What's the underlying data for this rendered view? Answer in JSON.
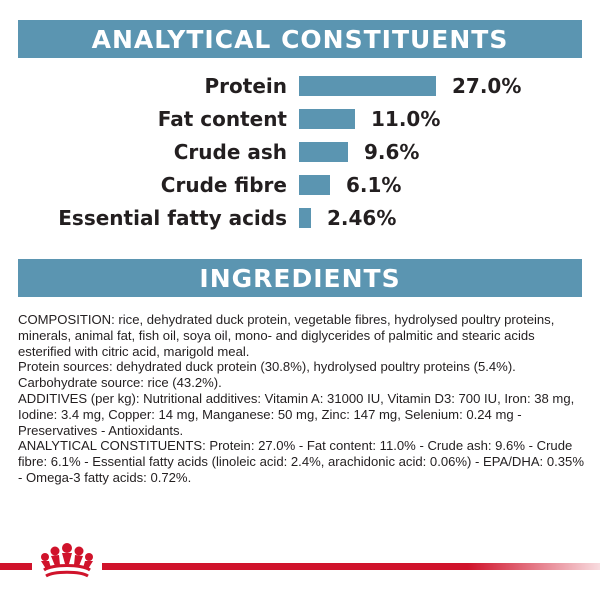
{
  "colors": {
    "banner": "#5b95b1",
    "bar": "#5b95b1",
    "brand_red": "#d0132b",
    "text": "#231f20"
  },
  "sections": {
    "analytical_title": "ANALYTICAL CONSTITUENTS",
    "ingredients_title": "INGREDIENTS"
  },
  "chart_data": {
    "type": "bar",
    "orientation": "horizontal",
    "categories": [
      "Protein",
      "Fat content",
      "Crude ash",
      "Crude fibre",
      "Essential fatty acids"
    ],
    "values": [
      27.0,
      11.0,
      9.6,
      6.1,
      2.46
    ],
    "value_labels": [
      "27.0%",
      "11.0%",
      "9.6%",
      "6.1%",
      "2.46%"
    ],
    "unit": "%",
    "title": "ANALYTICAL CONSTITUENTS",
    "xlim": [
      0,
      27.0
    ],
    "grid": false,
    "legend": "none"
  },
  "ingredients": {
    "paragraphs": [
      "COMPOSITION: rice, dehydrated duck protein, vegetable fibres, hydrolysed poultry proteins, minerals, animal fat, fish oil, soya oil, mono- and diglycerides of palmitic and stearic acids esterified with citric acid, marigold meal.",
      "Protein sources: dehydrated duck protein (30.8%), hydrolysed poultry proteins (5.4%).",
      "Carbohydrate source: rice (43.2%).",
      "ADDITIVES (per kg): Nutritional additives: Vitamin A: 31000 IU, Vitamin D3: 700 IU, Iron: 38 mg, Iodine: 3.4 mg, Copper: 14 mg, Manganese: 50 mg, Zinc: 147 mg, Selenium: 0.24 mg - Preservatives - Antioxidants.",
      "ANALYTICAL CONSTITUENTS: Protein: 27.0% - Fat content: 11.0% - Crude ash: 9.6% - Crude fibre: 6.1% - Essential fatty acids (linoleic acid: 2.4%, arachidonic acid: 0.06%) - EPA/DHA: 0.35% - Omega-3 fatty acids: 0.72%."
    ]
  },
  "footer": {
    "logo_icon": "royal-canin-crown-icon"
  }
}
